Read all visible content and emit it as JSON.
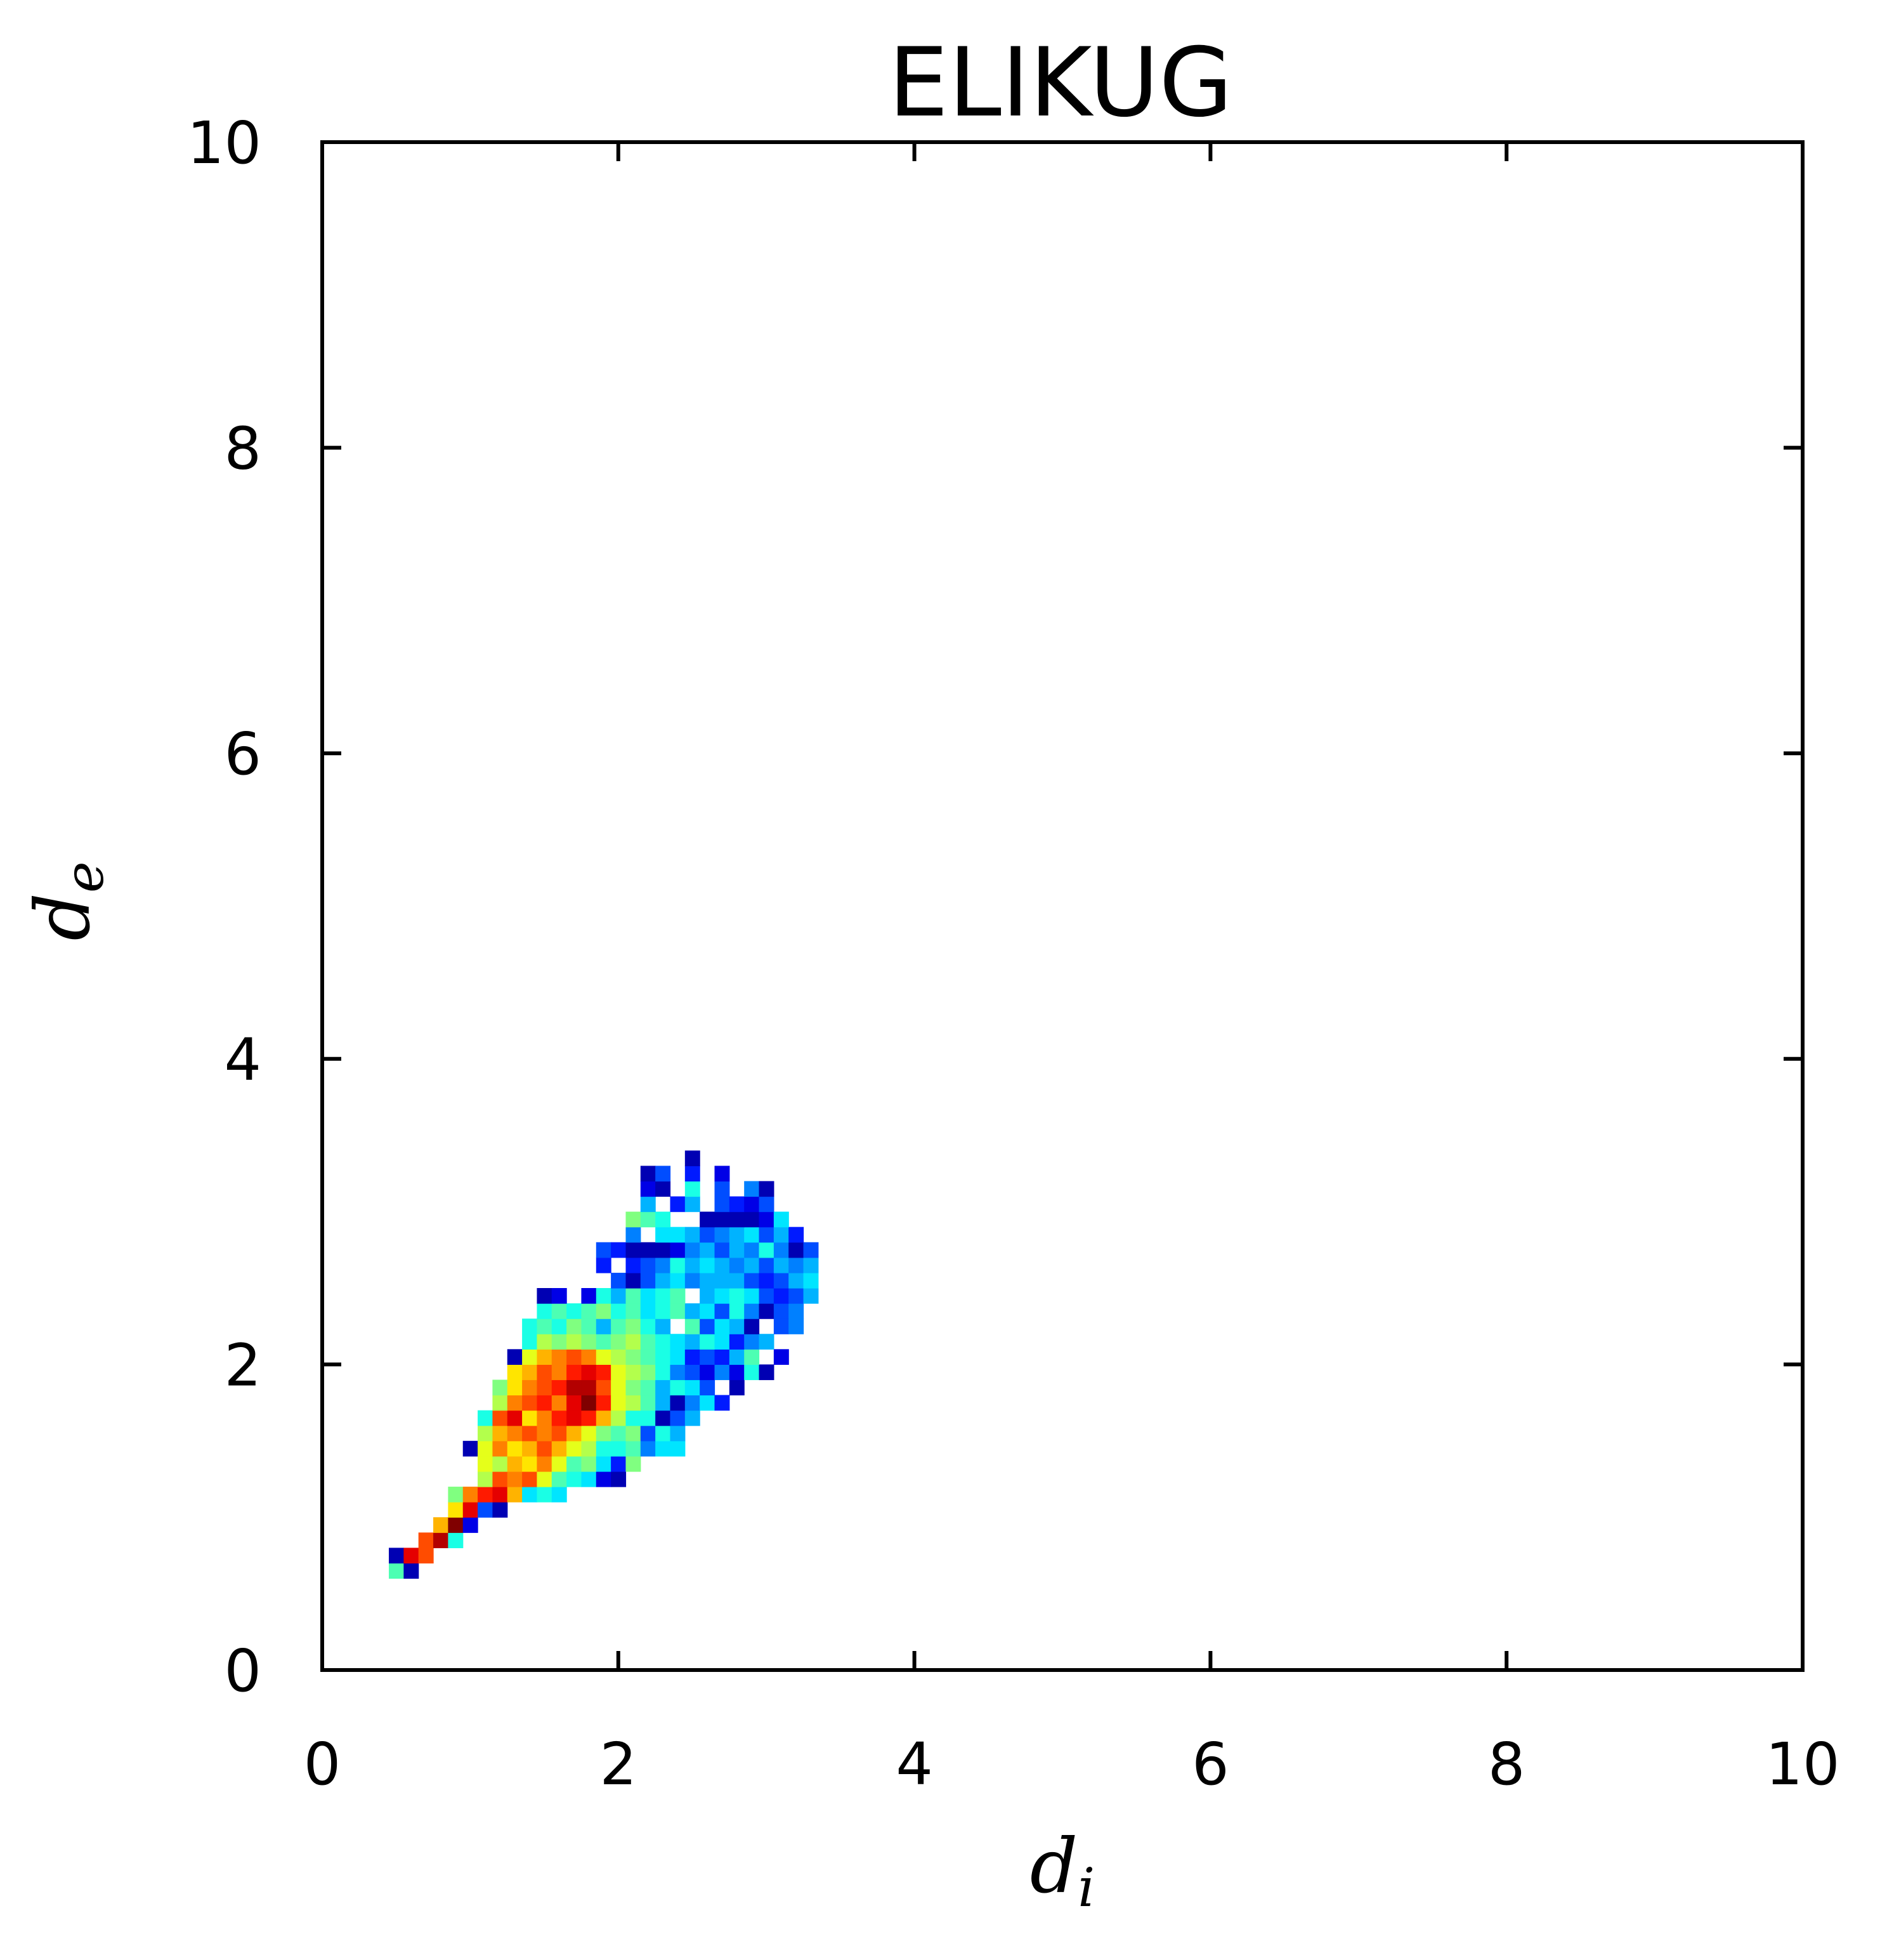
{
  "chart_data": {
    "type": "heatmap",
    "title": "ELIKUG",
    "xlabel": "d",
    "xlabel_sub": "i",
    "ylabel": "d",
    "ylabel_sub": "e",
    "xlim": [
      0,
      10
    ],
    "ylim": [
      0,
      10
    ],
    "xticks": [
      0,
      2,
      4,
      6,
      8,
      10
    ],
    "yticks": [
      0,
      2,
      4,
      6,
      8,
      10
    ],
    "xtick_labels": [
      "0",
      "2",
      "4",
      "6",
      "8",
      "10"
    ],
    "ytick_labels": [
      "0",
      "2",
      "4",
      "6",
      "8",
      "10"
    ],
    "grid": false,
    "colormap": "jet",
    "bin_size": 0.1,
    "value_scale": "relative density 0-1",
    "cells": [
      [
        0.5,
        0.65,
        0.45
      ],
      [
        0.6,
        0.65,
        0.05
      ],
      [
        0.5,
        0.75,
        0.05
      ],
      [
        0.6,
        0.75,
        0.9
      ],
      [
        0.7,
        0.75,
        0.8
      ],
      [
        0.7,
        0.85,
        0.8
      ],
      [
        0.8,
        0.85,
        0.95
      ],
      [
        0.9,
        0.85,
        0.4
      ],
      [
        0.8,
        0.95,
        0.7
      ],
      [
        0.9,
        0.95,
        1.0
      ],
      [
        1.0,
        0.95,
        0.1
      ],
      [
        0.9,
        1.05,
        0.65
      ],
      [
        1.0,
        1.05,
        0.9
      ],
      [
        1.1,
        1.05,
        0.2
      ],
      [
        1.2,
        1.05,
        0.05
      ],
      [
        0.9,
        1.15,
        0.5
      ],
      [
        1.0,
        1.15,
        0.75
      ],
      [
        1.1,
        1.15,
        0.85
      ],
      [
        1.2,
        1.15,
        0.9
      ],
      [
        1.3,
        1.15,
        0.7
      ],
      [
        1.4,
        1.15,
        0.35
      ],
      [
        1.5,
        1.15,
        0.4
      ],
      [
        1.6,
        1.15,
        0.35
      ],
      [
        1.1,
        1.25,
        0.55
      ],
      [
        1.2,
        1.25,
        0.8
      ],
      [
        1.3,
        1.25,
        0.75
      ],
      [
        1.4,
        1.25,
        0.8
      ],
      [
        1.5,
        1.25,
        0.6
      ],
      [
        1.6,
        1.25,
        0.45
      ],
      [
        1.7,
        1.25,
        0.4
      ],
      [
        1.8,
        1.25,
        0.35
      ],
      [
        1.9,
        1.25,
        0.1
      ],
      [
        2.0,
        1.25,
        0.05
      ],
      [
        1.1,
        1.35,
        0.6
      ],
      [
        1.2,
        1.35,
        0.55
      ],
      [
        1.3,
        1.35,
        0.7
      ],
      [
        1.4,
        1.35,
        0.65
      ],
      [
        1.5,
        1.35,
        0.75
      ],
      [
        1.6,
        1.35,
        0.6
      ],
      [
        1.7,
        1.35,
        0.45
      ],
      [
        1.8,
        1.35,
        0.5
      ],
      [
        1.9,
        1.35,
        0.35
      ],
      [
        2.0,
        1.35,
        0.15
      ],
      [
        2.1,
        1.35,
        0.5
      ],
      [
        1.0,
        1.45,
        0.05
      ],
      [
        1.1,
        1.45,
        0.6
      ],
      [
        1.2,
        1.45,
        0.75
      ],
      [
        1.3,
        1.45,
        0.65
      ],
      [
        1.4,
        1.45,
        0.7
      ],
      [
        1.5,
        1.45,
        0.8
      ],
      [
        1.6,
        1.45,
        0.7
      ],
      [
        1.7,
        1.45,
        0.6
      ],
      [
        1.8,
        1.45,
        0.55
      ],
      [
        1.9,
        1.45,
        0.4
      ],
      [
        2.0,
        1.45,
        0.4
      ],
      [
        2.1,
        1.45,
        0.45
      ],
      [
        2.2,
        1.45,
        0.25
      ],
      [
        2.3,
        1.45,
        0.35
      ],
      [
        2.4,
        1.45,
        0.35
      ],
      [
        1.1,
        1.55,
        0.55
      ],
      [
        1.2,
        1.55,
        0.7
      ],
      [
        1.3,
        1.55,
        0.75
      ],
      [
        1.4,
        1.55,
        0.8
      ],
      [
        1.5,
        1.55,
        0.75
      ],
      [
        1.6,
        1.55,
        0.8
      ],
      [
        1.7,
        1.55,
        0.7
      ],
      [
        1.8,
        1.55,
        0.6
      ],
      [
        1.9,
        1.55,
        0.5
      ],
      [
        2.0,
        1.55,
        0.45
      ],
      [
        2.1,
        1.55,
        0.5
      ],
      [
        2.2,
        1.55,
        0.2
      ],
      [
        2.3,
        1.55,
        0.4
      ],
      [
        2.4,
        1.55,
        0.3
      ],
      [
        1.1,
        1.65,
        0.4
      ],
      [
        1.2,
        1.65,
        0.8
      ],
      [
        1.3,
        1.65,
        0.9
      ],
      [
        1.4,
        1.65,
        0.65
      ],
      [
        1.5,
        1.65,
        0.75
      ],
      [
        1.6,
        1.65,
        0.85
      ],
      [
        1.7,
        1.65,
        0.9
      ],
      [
        1.8,
        1.65,
        0.85
      ],
      [
        1.9,
        1.65,
        0.7
      ],
      [
        2.0,
        1.65,
        0.55
      ],
      [
        2.1,
        1.65,
        0.4
      ],
      [
        2.2,
        1.65,
        0.4
      ],
      [
        2.3,
        1.65,
        0.05
      ],
      [
        2.4,
        1.65,
        0.2
      ],
      [
        2.5,
        1.65,
        0.3
      ],
      [
        1.2,
        1.75,
        0.55
      ],
      [
        1.3,
        1.75,
        0.75
      ],
      [
        1.4,
        1.75,
        0.8
      ],
      [
        1.5,
        1.75,
        0.85
      ],
      [
        1.6,
        1.75,
        0.75
      ],
      [
        1.7,
        1.75,
        0.9
      ],
      [
        1.8,
        1.75,
        1.0
      ],
      [
        1.9,
        1.75,
        0.85
      ],
      [
        2.0,
        1.75,
        0.6
      ],
      [
        2.1,
        1.75,
        0.55
      ],
      [
        2.2,
        1.75,
        0.45
      ],
      [
        2.3,
        1.75,
        0.3
      ],
      [
        2.4,
        1.75,
        0.05
      ],
      [
        2.5,
        1.75,
        0.25
      ],
      [
        2.6,
        1.75,
        0.35
      ],
      [
        2.7,
        1.75,
        0.15
      ],
      [
        1.2,
        1.85,
        0.5
      ],
      [
        1.3,
        1.85,
        0.65
      ],
      [
        1.4,
        1.85,
        0.75
      ],
      [
        1.5,
        1.85,
        0.8
      ],
      [
        1.6,
        1.85,
        0.85
      ],
      [
        1.7,
        1.85,
        0.95
      ],
      [
        1.8,
        1.85,
        0.95
      ],
      [
        1.9,
        1.85,
        0.8
      ],
      [
        2.0,
        1.85,
        0.6
      ],
      [
        2.1,
        1.85,
        0.5
      ],
      [
        2.2,
        1.85,
        0.45
      ],
      [
        2.3,
        1.85,
        0.3
      ],
      [
        2.4,
        1.85,
        0.4
      ],
      [
        2.5,
        1.85,
        0.35
      ],
      [
        2.6,
        1.85,
        0.2
      ],
      [
        2.8,
        1.85,
        0.05
      ],
      [
        1.3,
        1.95,
        0.65
      ],
      [
        1.4,
        1.95,
        0.7
      ],
      [
        1.5,
        1.95,
        0.8
      ],
      [
        1.6,
        1.95,
        0.75
      ],
      [
        1.7,
        1.95,
        0.85
      ],
      [
        1.8,
        1.95,
        0.9
      ],
      [
        1.9,
        1.95,
        0.85
      ],
      [
        2.0,
        1.95,
        0.6
      ],
      [
        2.1,
        1.95,
        0.55
      ],
      [
        2.2,
        1.95,
        0.5
      ],
      [
        2.3,
        1.95,
        0.4
      ],
      [
        2.4,
        1.95,
        0.25
      ],
      [
        2.5,
        1.95,
        0.2
      ],
      [
        2.6,
        1.95,
        0.1
      ],
      [
        2.7,
        1.95,
        0.25
      ],
      [
        2.8,
        1.95,
        0.1
      ],
      [
        2.9,
        1.95,
        0.4
      ],
      [
        3.0,
        1.95,
        0.05
      ],
      [
        1.3,
        2.05,
        0.05
      ],
      [
        1.4,
        2.05,
        0.6
      ],
      [
        1.5,
        2.05,
        0.7
      ],
      [
        1.6,
        2.05,
        0.75
      ],
      [
        1.7,
        2.05,
        0.8
      ],
      [
        1.8,
        2.05,
        0.75
      ],
      [
        1.9,
        2.05,
        0.6
      ],
      [
        2.0,
        2.05,
        0.55
      ],
      [
        2.1,
        2.05,
        0.5
      ],
      [
        2.2,
        2.05,
        0.45
      ],
      [
        2.3,
        2.05,
        0.4
      ],
      [
        2.4,
        2.05,
        0.35
      ],
      [
        2.5,
        2.05,
        0.15
      ],
      [
        2.6,
        2.05,
        0.2
      ],
      [
        2.7,
        2.05,
        0.15
      ],
      [
        2.8,
        2.05,
        0.3
      ],
      [
        2.9,
        2.05,
        0.45
      ],
      [
        3.1,
        2.05,
        0.1
      ],
      [
        1.4,
        2.15,
        0.4
      ],
      [
        1.5,
        2.15,
        0.55
      ],
      [
        1.6,
        2.15,
        0.5
      ],
      [
        1.7,
        2.15,
        0.55
      ],
      [
        1.8,
        2.15,
        0.5
      ],
      [
        1.9,
        2.15,
        0.45
      ],
      [
        2.0,
        2.15,
        0.5
      ],
      [
        2.1,
        2.15,
        0.55
      ],
      [
        2.2,
        2.15,
        0.45
      ],
      [
        2.3,
        2.15,
        0.4
      ],
      [
        2.4,
        2.15,
        0.35
      ],
      [
        2.5,
        2.15,
        0.3
      ],
      [
        2.6,
        2.15,
        0.4
      ],
      [
        2.7,
        2.15,
        0.35
      ],
      [
        2.8,
        2.15,
        0.15
      ],
      [
        2.9,
        2.15,
        0.25
      ],
      [
        3.0,
        2.15,
        0.3
      ],
      [
        1.4,
        2.25,
        0.4
      ],
      [
        1.5,
        2.25,
        0.45
      ],
      [
        1.6,
        2.25,
        0.4
      ],
      [
        1.7,
        2.25,
        0.5
      ],
      [
        1.8,
        2.25,
        0.45
      ],
      [
        1.9,
        2.25,
        0.3
      ],
      [
        2.0,
        2.25,
        0.45
      ],
      [
        2.1,
        2.25,
        0.5
      ],
      [
        2.2,
        2.25,
        0.4
      ],
      [
        2.3,
        2.25,
        0.3
      ],
      [
        2.5,
        2.25,
        0.45
      ],
      [
        2.6,
        2.25,
        0.2
      ],
      [
        2.7,
        2.25,
        0.35
      ],
      [
        2.8,
        2.25,
        0.3
      ],
      [
        2.9,
        2.25,
        0.05
      ],
      [
        3.1,
        2.25,
        0.2
      ],
      [
        3.2,
        2.25,
        0.25
      ],
      [
        1.5,
        2.35,
        0.4
      ],
      [
        1.6,
        2.35,
        0.45
      ],
      [
        1.7,
        2.35,
        0.4
      ],
      [
        1.8,
        2.35,
        0.45
      ],
      [
        1.9,
        2.35,
        0.5
      ],
      [
        2.0,
        2.35,
        0.4
      ],
      [
        2.1,
        2.35,
        0.45
      ],
      [
        2.2,
        2.35,
        0.35
      ],
      [
        2.3,
        2.35,
        0.4
      ],
      [
        2.4,
        2.35,
        0.45
      ],
      [
        2.5,
        2.35,
        0.3
      ],
      [
        2.6,
        2.35,
        0.35
      ],
      [
        2.7,
        2.35,
        0.2
      ],
      [
        2.8,
        2.35,
        0.4
      ],
      [
        2.9,
        2.35,
        0.25
      ],
      [
        3.0,
        2.35,
        0.05
      ],
      [
        3.1,
        2.35,
        0.2
      ],
      [
        3.2,
        2.35,
        0.25
      ],
      [
        1.5,
        2.45,
        0.05
      ],
      [
        1.6,
        2.45,
        0.1
      ],
      [
        1.8,
        2.45,
        0.1
      ],
      [
        1.9,
        2.45,
        0.4
      ],
      [
        2.0,
        2.45,
        0.3
      ],
      [
        2.1,
        2.45,
        0.45
      ],
      [
        2.2,
        2.45,
        0.35
      ],
      [
        2.3,
        2.45,
        0.4
      ],
      [
        2.4,
        2.45,
        0.45
      ],
      [
        2.6,
        2.45,
        0.3
      ],
      [
        2.7,
        2.45,
        0.35
      ],
      [
        2.8,
        2.45,
        0.4
      ],
      [
        2.9,
        2.45,
        0.35
      ],
      [
        3.0,
        2.45,
        0.2
      ],
      [
        3.1,
        2.45,
        0.15
      ],
      [
        3.2,
        2.45,
        0.2
      ],
      [
        3.3,
        2.45,
        0.3
      ],
      [
        2.0,
        2.55,
        0.2
      ],
      [
        2.1,
        2.55,
        0.05
      ],
      [
        2.2,
        2.55,
        0.2
      ],
      [
        2.3,
        2.55,
        0.3
      ],
      [
        2.4,
        2.55,
        0.35
      ],
      [
        2.5,
        2.55,
        0.25
      ],
      [
        2.6,
        2.55,
        0.3
      ],
      [
        2.7,
        2.55,
        0.3
      ],
      [
        2.8,
        2.55,
        0.3
      ],
      [
        2.9,
        2.55,
        0.2
      ],
      [
        3.0,
        2.55,
        0.15
      ],
      [
        3.1,
        2.55,
        0.2
      ],
      [
        3.2,
        2.55,
        0.3
      ],
      [
        3.3,
        2.55,
        0.35
      ],
      [
        1.9,
        2.65,
        0.15
      ],
      [
        2.1,
        2.65,
        0.15
      ],
      [
        2.2,
        2.65,
        0.2
      ],
      [
        2.3,
        2.65,
        0.25
      ],
      [
        2.4,
        2.65,
        0.4
      ],
      [
        2.5,
        2.65,
        0.3
      ],
      [
        2.6,
        2.65,
        0.35
      ],
      [
        2.7,
        2.65,
        0.3
      ],
      [
        2.8,
        2.65,
        0.25
      ],
      [
        2.9,
        2.65,
        0.3
      ],
      [
        3.0,
        2.65,
        0.2
      ],
      [
        3.1,
        2.65,
        0.3
      ],
      [
        3.2,
        2.65,
        0.25
      ],
      [
        3.3,
        2.65,
        0.3
      ],
      [
        1.9,
        2.75,
        0.2
      ],
      [
        2.0,
        2.75,
        0.15
      ],
      [
        2.1,
        2.75,
        0.05
      ],
      [
        2.2,
        2.75,
        0.05
      ],
      [
        2.3,
        2.75,
        0.05
      ],
      [
        2.4,
        2.75,
        0.1
      ],
      [
        2.5,
        2.75,
        0.25
      ],
      [
        2.6,
        2.75,
        0.3
      ],
      [
        2.7,
        2.75,
        0.2
      ],
      [
        2.8,
        2.75,
        0.3
      ],
      [
        2.9,
        2.75,
        0.25
      ],
      [
        3.0,
        2.75,
        0.4
      ],
      [
        3.1,
        2.75,
        0.25
      ],
      [
        3.2,
        2.75,
        0.05
      ],
      [
        3.3,
        2.75,
        0.2
      ],
      [
        2.1,
        2.85,
        0.25
      ],
      [
        2.3,
        2.85,
        0.35
      ],
      [
        2.4,
        2.85,
        0.35
      ],
      [
        2.5,
        2.85,
        0.3
      ],
      [
        2.6,
        2.85,
        0.2
      ],
      [
        2.7,
        2.85,
        0.25
      ],
      [
        2.8,
        2.85,
        0.3
      ],
      [
        2.9,
        2.85,
        0.35
      ],
      [
        3.0,
        2.85,
        0.2
      ],
      [
        3.1,
        2.85,
        0.3
      ],
      [
        3.2,
        2.85,
        0.15
      ],
      [
        2.1,
        2.95,
        0.5
      ],
      [
        2.2,
        2.95,
        0.45
      ],
      [
        2.3,
        2.95,
        0.4
      ],
      [
        2.6,
        2.95,
        0.05
      ],
      [
        2.7,
        2.95,
        0.05
      ],
      [
        2.8,
        2.95,
        0.05
      ],
      [
        2.9,
        2.95,
        0.05
      ],
      [
        3.0,
        2.95,
        0.1
      ],
      [
        3.1,
        2.95,
        0.35
      ],
      [
        2.2,
        3.05,
        0.3
      ],
      [
        2.4,
        3.05,
        0.15
      ],
      [
        2.5,
        3.05,
        0.3
      ],
      [
        2.7,
        3.05,
        0.2
      ],
      [
        2.8,
        3.05,
        0.15
      ],
      [
        2.9,
        3.05,
        0.1
      ],
      [
        3.0,
        3.05,
        0.2
      ],
      [
        2.2,
        3.15,
        0.1
      ],
      [
        2.3,
        3.15,
        0.05
      ],
      [
        2.5,
        3.15,
        0.4
      ],
      [
        2.7,
        3.15,
        0.2
      ],
      [
        2.9,
        3.15,
        0.25
      ],
      [
        3.0,
        3.15,
        0.05
      ],
      [
        2.2,
        3.25,
        0.05
      ],
      [
        2.3,
        3.25,
        0.2
      ],
      [
        2.5,
        3.25,
        0.15
      ],
      [
        2.7,
        3.25,
        0.1
      ],
      [
        2.5,
        3.35,
        0.05
      ]
    ]
  }
}
